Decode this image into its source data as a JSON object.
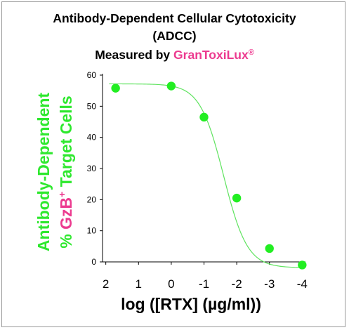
{
  "header": {
    "line1": "Antibody-Dependent Cellular Cytotoxicity",
    "line2": "(ADCC)",
    "line3_prefix": "Measured by ",
    "brand": "GranToxiLux",
    "brand_mark": "®"
  },
  "chart_data": {
    "type": "line",
    "xlabel": "log ([RTX] (µg/ml))",
    "ylabel_line1": "Antibody-Dependent",
    "ylabel_line2_prefix": "% ",
    "ylabel_line2_highlight": "GzB",
    "ylabel_line2_superscript": "+",
    "ylabel_line2_suffix": " Target Cells",
    "x_reversed": true,
    "xlim": [
      2.1,
      -4.1
    ],
    "ylim": [
      0,
      60
    ],
    "x_ticks": [
      2,
      1,
      0,
      -1,
      -2,
      -3,
      -4
    ],
    "y_ticks": [
      0,
      10,
      20,
      30,
      40,
      50,
      60
    ],
    "grid": false,
    "series": [
      {
        "points": [
          {
            "x": 1.7,
            "y": 55.8
          },
          {
            "x": 0,
            "y": 56.5
          },
          {
            "x": -1,
            "y": 46.5
          },
          {
            "x": -2,
            "y": 20.5
          },
          {
            "x": -3,
            "y": 4.3
          },
          {
            "x": -4,
            "y": -1.0
          }
        ],
        "fit": {
          "top": 57.2,
          "bottom": -1.9,
          "log_ec50": -1.6,
          "hill": 1.2
        }
      }
    ],
    "colors": {
      "marker": "#22ee22",
      "line": "#5fe35f",
      "label_green": "#2ee82e",
      "label_pink": "#ec3a8f"
    }
  }
}
